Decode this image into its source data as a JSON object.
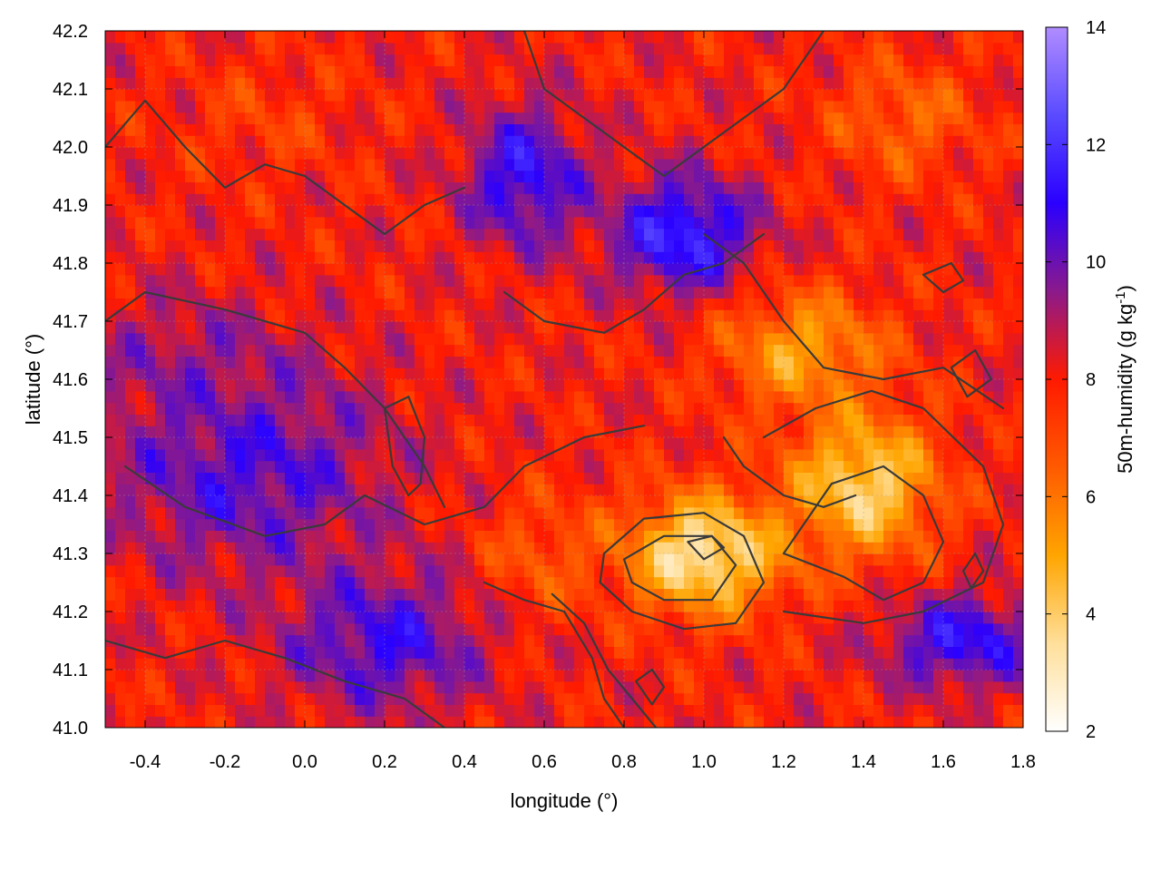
{
  "chart_data": {
    "type": "heatmap",
    "title": "",
    "xlabel": "longitude (°)",
    "ylabel": "latitude (°)",
    "colorbar_label": "50m-humidity (g kg-1)",
    "colorbar_label_parts": {
      "main": "50m-humidity (g kg",
      "sup": "-1",
      "end": ")"
    },
    "xlim": [
      -0.5,
      1.8
    ],
    "ylim": [
      41.0,
      42.2
    ],
    "zlim": [
      2,
      14
    ],
    "x_ticks": [
      "-0.4",
      "-0.2",
      "0.0",
      "0.2",
      "0.4",
      "0.6",
      "0.8",
      "1.0",
      "1.2",
      "1.4",
      "1.6",
      "1.8"
    ],
    "x_tick_values": [
      -0.4,
      -0.2,
      0.0,
      0.2,
      0.4,
      0.6,
      0.8,
      1.0,
      1.2,
      1.4,
      1.6,
      1.8
    ],
    "y_ticks": [
      "41.0",
      "41.1",
      "41.2",
      "41.3",
      "41.4",
      "41.5",
      "41.6",
      "41.7",
      "41.8",
      "41.9",
      "42.0",
      "42.1",
      "42.2"
    ],
    "y_tick_values": [
      41.0,
      41.1,
      41.2,
      41.3,
      41.4,
      41.5,
      41.6,
      41.7,
      41.8,
      41.9,
      42.0,
      42.1,
      42.2
    ],
    "colorbar_ticks": [
      "2",
      "4",
      "6",
      "8",
      "10",
      "12",
      "14"
    ],
    "colorbar_tick_values": [
      2,
      4,
      6,
      8,
      10,
      12,
      14
    ],
    "grid": true,
    "colormap": [
      {
        "value": 2,
        "color": "#ffffff"
      },
      {
        "value": 3.5,
        "color": "#ffdf9a"
      },
      {
        "value": 5,
        "color": "#ffa500"
      },
      {
        "value": 6.5,
        "color": "#ff5a00"
      },
      {
        "value": 8,
        "color": "#ff1a00"
      },
      {
        "value": 9.5,
        "color": "#8b1a8b"
      },
      {
        "value": 11,
        "color": "#2a00ff"
      },
      {
        "value": 12.5,
        "color": "#5a4bff"
      },
      {
        "value": 14,
        "color": "#b08cff"
      }
    ],
    "field_blobs": [
      {
        "x": -0.15,
        "y": 41.45,
        "amp": 10.8,
        "sx": 0.35,
        "sy": 0.18
      },
      {
        "x": -0.3,
        "y": 41.62,
        "amp": 9.6,
        "sx": 0.25,
        "sy": 0.12
      },
      {
        "x": 0.55,
        "y": 41.95,
        "amp": 11.5,
        "sx": 0.15,
        "sy": 0.12
      },
      {
        "x": 0.95,
        "y": 41.85,
        "amp": 12.2,
        "sx": 0.18,
        "sy": 0.1
      },
      {
        "x": 0.2,
        "y": 41.15,
        "amp": 11.0,
        "sx": 0.25,
        "sy": 0.12
      },
      {
        "x": 1.65,
        "y": 41.15,
        "amp": 11.5,
        "sx": 0.2,
        "sy": 0.08
      },
      {
        "x": 1.0,
        "y": 41.3,
        "amp": 2.6,
        "sx": 0.2,
        "sy": 0.1
      },
      {
        "x": 1.4,
        "y": 41.42,
        "amp": 3.3,
        "sx": 0.18,
        "sy": 0.12
      },
      {
        "x": 1.25,
        "y": 41.65,
        "amp": 4.8,
        "sx": 0.2,
        "sy": 0.1
      },
      {
        "x": -0.1,
        "y": 42.05,
        "amp": 7.2,
        "sx": 0.2,
        "sy": 0.1
      },
      {
        "x": 1.5,
        "y": 42.05,
        "amp": 6.2,
        "sx": 0.18,
        "sy": 0.1
      },
      {
        "x": 0.6,
        "y": 41.3,
        "amp": 6.5,
        "sx": 0.15,
        "sy": 0.1
      }
    ],
    "field_background": 8.0,
    "contours": [
      {
        "points": [
          [
            0.75,
            41.3
          ],
          [
            0.85,
            41.36
          ],
          [
            1.0,
            41.37
          ],
          [
            1.1,
            41.33
          ],
          [
            1.15,
            41.25
          ],
          [
            1.08,
            41.18
          ],
          [
            0.95,
            41.17
          ],
          [
            0.82,
            41.2
          ],
          [
            0.74,
            41.25
          ],
          [
            0.75,
            41.3
          ]
        ]
      },
      {
        "points": [
          [
            0.8,
            41.29
          ],
          [
            0.9,
            41.33
          ],
          [
            1.02,
            41.33
          ],
          [
            1.08,
            41.28
          ],
          [
            1.02,
            41.22
          ],
          [
            0.9,
            41.22
          ],
          [
            0.82,
            41.25
          ],
          [
            0.8,
            41.29
          ]
        ]
      },
      {
        "points": [
          [
            0.96,
            41.32
          ],
          [
            1.02,
            41.33
          ],
          [
            1.05,
            41.31
          ],
          [
            1.0,
            41.29
          ],
          [
            0.96,
            41.32
          ]
        ]
      },
      {
        "points": [
          [
            1.2,
            41.3
          ],
          [
            1.32,
            41.42
          ],
          [
            1.45,
            41.45
          ],
          [
            1.55,
            41.4
          ],
          [
            1.6,
            41.32
          ],
          [
            1.55,
            41.25
          ],
          [
            1.45,
            41.22
          ],
          [
            1.35,
            41.26
          ],
          [
            1.2,
            41.3
          ]
        ]
      },
      {
        "points": [
          [
            1.15,
            41.5
          ],
          [
            1.28,
            41.55
          ],
          [
            1.42,
            41.58
          ],
          [
            1.55,
            41.55
          ],
          [
            1.7,
            41.45
          ],
          [
            1.75,
            41.35
          ],
          [
            1.7,
            41.25
          ],
          [
            1.55,
            41.2
          ],
          [
            1.4,
            41.18
          ],
          [
            1.2,
            41.2
          ]
        ]
      },
      {
        "points": [
          [
            0.2,
            41.55
          ],
          [
            0.26,
            41.57
          ],
          [
            0.3,
            41.5
          ],
          [
            0.29,
            41.42
          ],
          [
            0.26,
            41.4
          ],
          [
            0.22,
            41.45
          ],
          [
            0.2,
            41.55
          ]
        ]
      },
      {
        "points": [
          [
            -0.5,
            42.0
          ],
          [
            -0.4,
            42.08
          ],
          [
            -0.3,
            42.0
          ],
          [
            -0.2,
            41.93
          ],
          [
            -0.1,
            41.97
          ],
          [
            0.0,
            41.95
          ],
          [
            0.1,
            41.9
          ],
          [
            0.2,
            41.85
          ],
          [
            0.3,
            41.9
          ],
          [
            0.4,
            41.93
          ]
        ]
      },
      {
        "points": [
          [
            -0.5,
            41.7
          ],
          [
            -0.4,
            41.75
          ],
          [
            -0.2,
            41.72
          ],
          [
            0.0,
            41.68
          ],
          [
            0.1,
            41.62
          ],
          [
            0.2,
            41.55
          ],
          [
            0.3,
            41.45
          ],
          [
            0.35,
            41.38
          ]
        ]
      },
      {
        "points": [
          [
            -0.45,
            41.45
          ],
          [
            -0.3,
            41.38
          ],
          [
            -0.1,
            41.33
          ],
          [
            0.05,
            41.35
          ],
          [
            0.15,
            41.4
          ],
          [
            0.3,
            41.35
          ],
          [
            0.45,
            41.38
          ],
          [
            0.55,
            41.45
          ],
          [
            0.7,
            41.5
          ],
          [
            0.85,
            41.52
          ]
        ]
      },
      {
        "points": [
          [
            0.45,
            41.25
          ],
          [
            0.55,
            41.22
          ],
          [
            0.65,
            41.2
          ],
          [
            0.72,
            41.12
          ],
          [
            0.75,
            41.05
          ],
          [
            0.8,
            41.0
          ]
        ]
      },
      {
        "points": [
          [
            0.62,
            41.23
          ],
          [
            0.7,
            41.18
          ],
          [
            0.76,
            41.1
          ],
          [
            0.82,
            41.05
          ],
          [
            0.88,
            41.0
          ]
        ]
      },
      {
        "points": [
          [
            0.83,
            41.08
          ],
          [
            0.87,
            41.1
          ],
          [
            0.9,
            41.07
          ],
          [
            0.87,
            41.04
          ],
          [
            0.83,
            41.08
          ]
        ]
      },
      {
        "points": [
          [
            0.55,
            42.2
          ],
          [
            0.6,
            42.1
          ],
          [
            0.7,
            42.05
          ],
          [
            0.8,
            42.0
          ],
          [
            0.9,
            41.95
          ],
          [
            1.0,
            42.0
          ],
          [
            1.1,
            42.05
          ],
          [
            1.2,
            42.1
          ],
          [
            1.3,
            42.2
          ]
        ]
      },
      {
        "points": [
          [
            1.0,
            41.85
          ],
          [
            1.1,
            41.8
          ],
          [
            1.2,
            41.7
          ],
          [
            1.3,
            41.62
          ],
          [
            1.45,
            41.6
          ],
          [
            1.6,
            41.62
          ],
          [
            1.75,
            41.55
          ]
        ]
      },
      {
        "points": [
          [
            0.5,
            41.75
          ],
          [
            0.6,
            41.7
          ],
          [
            0.75,
            41.68
          ],
          [
            0.85,
            41.72
          ],
          [
            0.95,
            41.78
          ],
          [
            1.05,
            41.8
          ],
          [
            1.15,
            41.85
          ]
        ]
      },
      {
        "points": [
          [
            1.55,
            41.78
          ],
          [
            1.62,
            41.8
          ],
          [
            1.65,
            41.77
          ],
          [
            1.6,
            41.75
          ],
          [
            1.55,
            41.78
          ]
        ]
      },
      {
        "points": [
          [
            -0.5,
            41.15
          ],
          [
            -0.35,
            41.12
          ],
          [
            -0.2,
            41.15
          ],
          [
            -0.05,
            41.12
          ],
          [
            0.1,
            41.08
          ],
          [
            0.25,
            41.05
          ],
          [
            0.35,
            41.0
          ]
        ]
      },
      {
        "points": [
          [
            1.05,
            41.5
          ],
          [
            1.1,
            41.45
          ],
          [
            1.2,
            41.4
          ],
          [
            1.3,
            41.38
          ],
          [
            1.38,
            41.4
          ]
        ]
      },
      {
        "points": [
          [
            1.62,
            41.62
          ],
          [
            1.68,
            41.65
          ],
          [
            1.72,
            41.6
          ],
          [
            1.66,
            41.57
          ],
          [
            1.62,
            41.62
          ]
        ]
      },
      {
        "points": [
          [
            1.65,
            41.27
          ],
          [
            1.68,
            41.3
          ],
          [
            1.7,
            41.27
          ],
          [
            1.67,
            41.24
          ],
          [
            1.65,
            41.27
          ]
        ]
      }
    ]
  }
}
